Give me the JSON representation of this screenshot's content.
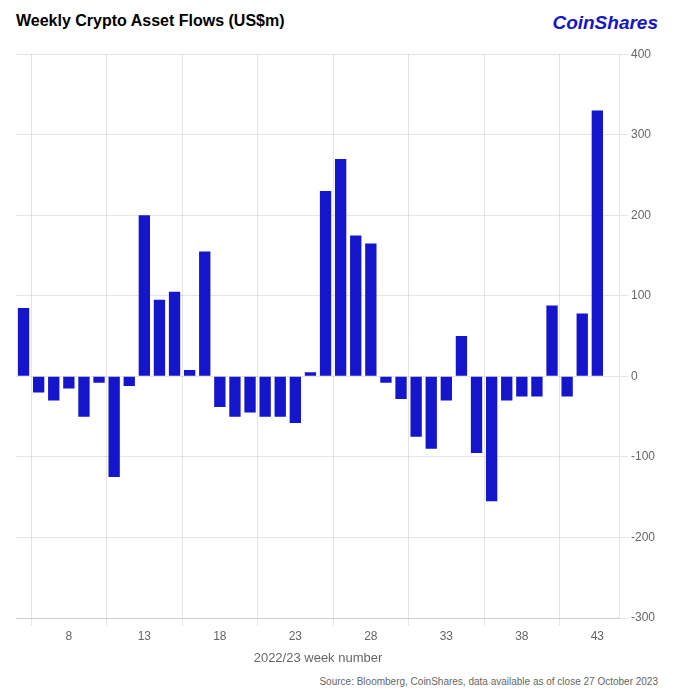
{
  "chart_data": {
    "type": "bar",
    "title": "Weekly Crypto Asset Flows (US$m)",
    "annotations": [
      "CoinShares",
      "Source: Bloomberg, CoinShares, data available as of close 27 October 2023"
    ],
    "xlabel": "2022/23 week number",
    "color": "#1515CC",
    "x": [
      5,
      6,
      7,
      8,
      9,
      10,
      11,
      12,
      13,
      14,
      15,
      16,
      17,
      18,
      19,
      20,
      21,
      22,
      23,
      24,
      25,
      26,
      27,
      28,
      29,
      30,
      31,
      32,
      33,
      34,
      35,
      36,
      37,
      38,
      39,
      40,
      41,
      42,
      43
    ],
    "values": [
      85,
      -20,
      -30,
      -15,
      -50,
      -8,
      -125,
      -12,
      200,
      95,
      105,
      8,
      155,
      -38,
      -50,
      -45,
      -50,
      -50,
      -58,
      5,
      230,
      270,
      175,
      165,
      -8,
      -28,
      -75,
      -90,
      -30,
      50,
      -95,
      -155,
      -30,
      -25,
      -25,
      88,
      -25,
      78,
      330
    ],
    "xlim": [
      4.5,
      44.5
    ],
    "xticks": [
      8,
      13,
      18,
      23,
      28,
      33,
      38,
      43
    ],
    "ylim": [
      -300,
      400
    ],
    "yticks": [
      -300,
      -200,
      -100,
      0,
      100,
      200,
      300,
      400
    ],
    "grid": true
  }
}
